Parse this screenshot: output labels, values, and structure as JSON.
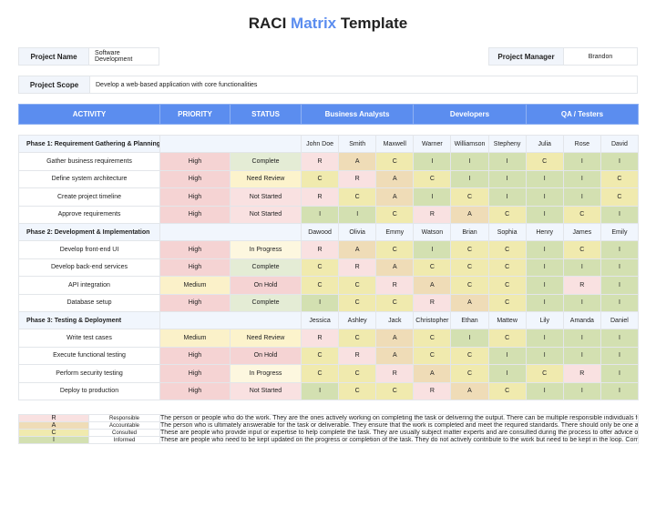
{
  "title": {
    "part1": "RACI",
    "part2": "Matrix",
    "part3": "Template",
    "accent_color": "#5b8def"
  },
  "project": {
    "name_label": "Project Name",
    "name_value": "Software Development",
    "manager_label": "Project Manager",
    "manager_value": "Brandon",
    "scope_label": "Project Scope",
    "scope_value": "Develop a web-based application with core functionalities"
  },
  "headers": {
    "activity": "ACTIVITY",
    "priority": "PRIORITY",
    "status": "STATUS",
    "groups": [
      "Business Analysts",
      "Developers",
      "QA / Testers"
    ]
  },
  "colors": {
    "R": "#f9e1e1",
    "A": "#efdcb7",
    "C": "#f0eaae",
    "I": "#d3e0b1",
    "High": "#f5d3d3",
    "Medium": "#fbf1c9",
    "Complete": "#e4ecd5",
    "Need Review": "#fcf3cc",
    "Not Started": "#f9e1e1",
    "In Progress": "#fdf7df",
    "On Hold": "#f5d3d3",
    "header": "#5b8def"
  },
  "phases": [
    {
      "name": "Phase 1: Requirement Gathering & Planning",
      "members": [
        "John Doe",
        "Smith",
        "Maxwell",
        "Warner",
        "Williamson",
        "Stepheny",
        "Julia",
        "Rose",
        "David"
      ],
      "rows": [
        {
          "activity": "Gather business requirements",
          "priority": "High",
          "status": "Complete",
          "raci": [
            "R",
            "A",
            "C",
            "I",
            "I",
            "I",
            "C",
            "I",
            "I"
          ]
        },
        {
          "activity": "Define system architecture",
          "priority": "High",
          "status": "Need Review",
          "raci": [
            "C",
            "R",
            "A",
            "C",
            "I",
            "I",
            "I",
            "I",
            "C"
          ]
        },
        {
          "activity": "Create project timeline",
          "priority": "High",
          "status": "Not Started",
          "raci": [
            "R",
            "C",
            "A",
            "I",
            "C",
            "I",
            "I",
            "I",
            "C"
          ]
        },
        {
          "activity": "Approve requirements",
          "priority": "High",
          "status": "Not Started",
          "raci": [
            "I",
            "I",
            "C",
            "R",
            "A",
            "C",
            "I",
            "C",
            "I"
          ]
        }
      ]
    },
    {
      "name": "Phase 2: Development & Implementation",
      "members": [
        "Dawood",
        "Olivia",
        "Emmy",
        "Watson",
        "Brian",
        "Sophia",
        "Henry",
        "James",
        "Emily"
      ],
      "rows": [
        {
          "activity": "Develop front-end UI",
          "priority": "High",
          "status": "In Progress",
          "raci": [
            "R",
            "A",
            "C",
            "I",
            "C",
            "C",
            "I",
            "C",
            "I"
          ]
        },
        {
          "activity": "Develop back-end services",
          "priority": "High",
          "status": "Complete",
          "raci": [
            "C",
            "R",
            "A",
            "C",
            "C",
            "C",
            "I",
            "I",
            "I"
          ]
        },
        {
          "activity": "API integration",
          "priority": "Medium",
          "status": "On Hold",
          "raci": [
            "C",
            "C",
            "R",
            "A",
            "C",
            "C",
            "I",
            "R",
            "I"
          ]
        },
        {
          "activity": "Database setup",
          "priority": "High",
          "status": "Complete",
          "raci": [
            "I",
            "C",
            "C",
            "R",
            "A",
            "C",
            "I",
            "I",
            "I"
          ]
        }
      ]
    },
    {
      "name": "Phase 3: Testing & Deployment",
      "members": [
        "Jessica",
        "Ashley",
        "Jack",
        "Christopher",
        "Ethan",
        "Mattew",
        "Lily",
        "Amanda",
        "Daniel"
      ],
      "rows": [
        {
          "activity": "Write test cases",
          "priority": "Medium",
          "status": "Need Review",
          "raci": [
            "R",
            "C",
            "A",
            "C",
            "I",
            "C",
            "I",
            "I",
            "I"
          ]
        },
        {
          "activity": "Execute functional testing",
          "priority": "High",
          "status": "On Hold",
          "raci": [
            "C",
            "R",
            "A",
            "C",
            "C",
            "I",
            "I",
            "I",
            "I"
          ]
        },
        {
          "activity": "Perform security testing",
          "priority": "High",
          "status": "In Progress",
          "raci": [
            "C",
            "C",
            "R",
            "A",
            "C",
            "I",
            "C",
            "R",
            "I"
          ]
        },
        {
          "activity": "Deploy to production",
          "priority": "High",
          "status": "Not Started",
          "raci": [
            "I",
            "C",
            "C",
            "R",
            "A",
            "C",
            "I",
            "I",
            "I"
          ]
        }
      ]
    }
  ],
  "legend": [
    {
      "code": "R",
      "name": "Responsible",
      "desc": "The person or people who do the work. They are the ones actively working on completing the task or delivering the output. There can be multiple responsible individuals for a task."
    },
    {
      "code": "A",
      "name": "Accountable",
      "desc": "The person who is ultimately answerable for the task or deliverable. They ensure that the work is completed and meet the required standards. There should only be one accountable person for each task to avoid confusion and ensure clear ownership."
    },
    {
      "code": "C",
      "name": "Consulted",
      "desc": "These are people who provide input or expertise to help complete the task. They are usually subject matter experts and are consulted during the process to offer advice or feedback. Communication is two-way."
    },
    {
      "code": "I",
      "name": "Informed",
      "desc": "These are people who need to be kept updated on the progress or completion of the task. They do not actively contribute to the work but need to be kept in the loop. Communication is one-way."
    }
  ]
}
